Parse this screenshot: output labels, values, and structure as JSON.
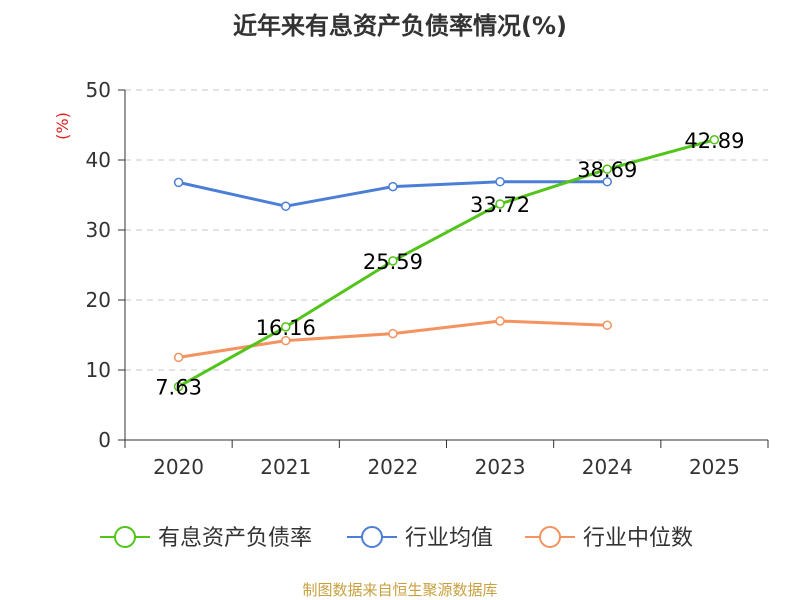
{
  "chart_data": {
    "type": "line",
    "title": "近年来有息资产负债率情况(%)",
    "ylabel": "(%)",
    "ylim": [
      0,
      50
    ],
    "yticks": [
      0,
      10,
      20,
      30,
      40,
      50
    ],
    "categories": [
      "2020",
      "2021",
      "2022",
      "2023",
      "2024",
      "2025"
    ],
    "grid": true,
    "legend_position": "bottom",
    "series": [
      {
        "name": "有息资产负债率",
        "color": "#52c41a",
        "values": [
          7.63,
          16.16,
          25.59,
          33.72,
          38.69,
          42.89
        ],
        "show_labels": true
      },
      {
        "name": "行业均值",
        "color": "#4b7fd6",
        "values": [
          36.8,
          33.4,
          36.2,
          36.9,
          36.9,
          null
        ],
        "show_labels": false
      },
      {
        "name": "行业中位数",
        "color": "#f4935f",
        "values": [
          11.8,
          14.2,
          15.2,
          17.0,
          16.4,
          null
        ],
        "show_labels": false
      }
    ],
    "source": "制图数据来自恒生聚源数据库"
  }
}
